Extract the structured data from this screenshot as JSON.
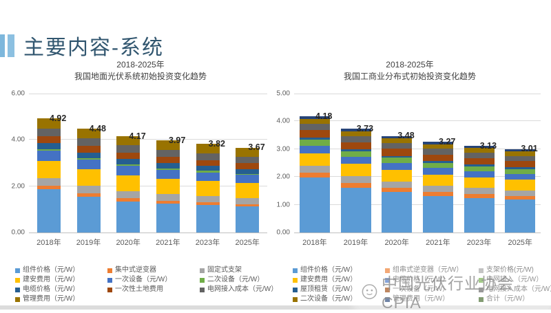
{
  "page": {
    "title": "主要内容-系统"
  },
  "watermark": {
    "text": "中国光伏行业协会CPIA"
  },
  "chart_data": [
    {
      "type": "bar",
      "stacked": true,
      "title": "2018-2025年",
      "subtitle": "我国地面光伏系统初始投资变化趋势",
      "unit": "元/W",
      "categories": [
        "2018年",
        "2019年",
        "2020年",
        "2021年",
        "2023年",
        "2025年"
      ],
      "totals": [
        4.92,
        4.48,
        4.17,
        3.97,
        3.82,
        3.67
      ],
      "ylim": [
        0,
        6
      ],
      "ytick_step": 2,
      "grid": true,
      "legend_position": "bottom",
      "series": [
        {
          "name": "组件价格（元/W）",
          "color": "#5B9BD5",
          "values": [
            1.88,
            1.55,
            1.35,
            1.25,
            1.18,
            1.12
          ]
        },
        {
          "name": "集中式逆变器",
          "color": "#ED7D31",
          "values": [
            0.15,
            0.14,
            0.13,
            0.12,
            0.12,
            0.11
          ]
        },
        {
          "name": "固定式支架",
          "color": "#A5A5A5",
          "values": [
            0.32,
            0.32,
            0.3,
            0.28,
            0.27,
            0.26
          ]
        },
        {
          "name": "建安费用（元/W）",
          "color": "#FFC000",
          "values": [
            0.75,
            0.72,
            0.7,
            0.68,
            0.66,
            0.64
          ]
        },
        {
          "name": "一次设备（元/W）",
          "color": "#4472C4",
          "values": [
            0.45,
            0.42,
            0.4,
            0.38,
            0.37,
            0.36
          ]
        },
        {
          "name": "二次设备（元/W）",
          "color": "#70AD47",
          "values": [
            0.06,
            0.06,
            0.06,
            0.06,
            0.06,
            0.05
          ]
        },
        {
          "name": "电缆价格（元/W）",
          "color": "#255E91",
          "values": [
            0.25,
            0.24,
            0.23,
            0.22,
            0.21,
            0.2
          ]
        },
        {
          "name": "一次性土地费用",
          "color": "#9E480E",
          "values": [
            0.3,
            0.28,
            0.28,
            0.27,
            0.26,
            0.25
          ]
        },
        {
          "name": "电网接入成本（元/W）",
          "color": "#636363",
          "values": [
            0.33,
            0.33,
            0.32,
            0.31,
            0.3,
            0.29
          ]
        },
        {
          "name": "管理费用（元/W）",
          "color": "#997300",
          "values": [
            0.43,
            0.42,
            0.4,
            0.4,
            0.39,
            0.39
          ]
        }
      ],
      "legend_extra": []
    },
    {
      "type": "bar",
      "stacked": true,
      "title": "2018-2025年",
      "subtitle": "我国工商业分布式初始投资变化趋势",
      "unit": "元/W",
      "categories": [
        "2018年",
        "2019年",
        "2020年",
        "2021年",
        "2023年",
        "2025年"
      ],
      "totals": [
        4.18,
        3.73,
        3.48,
        3.27,
        3.13,
        3.01
      ],
      "ylim": [
        0,
        5
      ],
      "ytick_step": 1,
      "grid": true,
      "legend_position": "bottom",
      "series": [
        {
          "name": "组件价格（元/W）",
          "color": "#5B9BD5",
          "values": [
            1.97,
            1.62,
            1.45,
            1.32,
            1.25,
            1.18
          ]
        },
        {
          "name": "组串式逆变器（元/W）",
          "color": "#ED7D31",
          "values": [
            0.18,
            0.16,
            0.15,
            0.14,
            0.13,
            0.13
          ]
        },
        {
          "name": "支架价格(元/W)",
          "color": "#A5A5A5",
          "values": [
            0.26,
            0.25,
            0.24,
            0.23,
            0.22,
            0.21
          ]
        },
        {
          "name": "建安费用（元/W）",
          "color": "#FFC000",
          "values": [
            0.44,
            0.44,
            0.42,
            0.4,
            0.39,
            0.38
          ]
        },
        {
          "name": "电缆价格（元/W）",
          "color": "#4472C4",
          "values": [
            0.27,
            0.25,
            0.24,
            0.23,
            0.22,
            0.21
          ]
        },
        {
          "name": "电网接入（元/W）",
          "color": "#70AD47",
          "values": [
            0.22,
            0.2,
            0.19,
            0.18,
            0.17,
            0.17
          ]
        },
        {
          "name": "屋顶租赁（元/W）",
          "color": "#255E91",
          "values": [
            0.08,
            0.07,
            0.07,
            0.07,
            0.07,
            0.07
          ]
        },
        {
          "name": "一次设备（元/W）",
          "color": "#9E480E",
          "values": [
            0.27,
            0.26,
            0.25,
            0.24,
            0.23,
            0.22
          ]
        },
        {
          "name": "电网接入成本（元/W）",
          "color": "#636363",
          "values": [
            0.22,
            0.22,
            0.21,
            0.2,
            0.2,
            0.19
          ]
        },
        {
          "name": "二次设备（元/W）",
          "color": "#997300",
          "values": [
            0.17,
            0.17,
            0.17,
            0.17,
            0.16,
            0.16
          ]
        },
        {
          "name": "管理费用（元/W）",
          "color": "#264478",
          "values": [
            0.1,
            0.09,
            0.09,
            0.09,
            0.09,
            0.09
          ]
        }
      ],
      "legend_extra": [
        {
          "label": "合计（元/W）",
          "color": "#43682B"
        }
      ]
    }
  ]
}
